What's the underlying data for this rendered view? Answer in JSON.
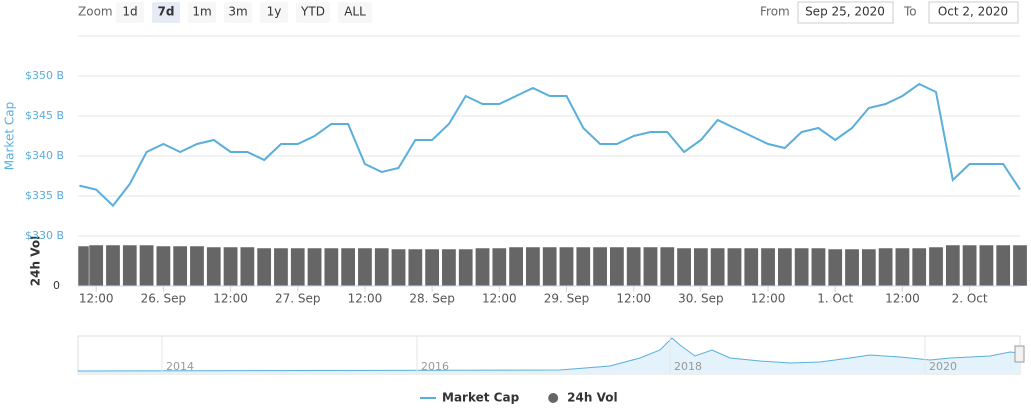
{
  "toolbar": {
    "zoom_label": "Zoom",
    "buttons": [
      "1d",
      "7d",
      "1m",
      "3m",
      "1y",
      "YTD",
      "ALL"
    ],
    "selected": "7d",
    "from_label": "From",
    "from": "Sep 25, 2020",
    "to_label": "To",
    "to": "Oct 2, 2020"
  },
  "navigator": {
    "labels": [
      "2014",
      "2016",
      "2018",
      "2020"
    ]
  },
  "chart_data": {
    "type": "line",
    "ylabel": "Market Cap",
    "y2label": "24h Vol",
    "x": [
      "2020-09-25T09:00",
      "2020-09-25T12:00",
      "2020-09-25T15:00",
      "2020-09-25T18:00",
      "2020-09-25T21:00",
      "2020-09-26T00:00",
      "2020-09-26T03:00",
      "2020-09-26T06:00",
      "2020-09-26T09:00",
      "2020-09-26T12:00",
      "2020-09-26T15:00",
      "2020-09-26T18:00",
      "2020-09-26T21:00",
      "2020-09-27T00:00",
      "2020-09-27T03:00",
      "2020-09-27T06:00",
      "2020-09-27T09:00",
      "2020-09-27T12:00",
      "2020-09-27T15:00",
      "2020-09-27T18:00",
      "2020-09-27T21:00",
      "2020-09-28T00:00",
      "2020-09-28T03:00",
      "2020-09-28T06:00",
      "2020-09-28T09:00",
      "2020-09-28T12:00",
      "2020-09-28T15:00",
      "2020-09-28T18:00",
      "2020-09-28T21:00",
      "2020-09-29T00:00",
      "2020-09-29T03:00",
      "2020-09-29T06:00",
      "2020-09-29T09:00",
      "2020-09-29T12:00",
      "2020-09-29T15:00",
      "2020-09-29T18:00",
      "2020-09-29T21:00",
      "2020-09-30T00:00",
      "2020-09-30T03:00",
      "2020-09-30T06:00",
      "2020-09-30T09:00",
      "2020-09-30T12:00",
      "2020-09-30T15:00",
      "2020-09-30T18:00",
      "2020-09-30T21:00",
      "2020-10-01T00:00",
      "2020-10-01T03:00",
      "2020-10-01T06:00",
      "2020-10-01T09:00",
      "2020-10-01T12:00",
      "2020-10-01T15:00",
      "2020-10-01T18:00",
      "2020-10-01T21:00",
      "2020-10-02T00:00",
      "2020-10-02T03:00",
      "2020-10-02T06:00",
      "2020-10-02T09:00"
    ],
    "series": [
      {
        "name": "Market Cap",
        "color": "#5aaedc",
        "values": [
          336.3,
          335.8,
          333.8,
          336.5,
          340.5,
          341.5,
          340.5,
          341.5,
          342,
          340.5,
          340.5,
          339.5,
          341.5,
          341.5,
          342.5,
          344,
          344,
          339,
          338,
          338.5,
          342,
          342,
          344,
          347.5,
          346.5,
          346.5,
          347.5,
          348.5,
          347.5,
          347.5,
          343.5,
          341.5,
          341.5,
          342.5,
          343,
          343,
          340.5,
          342,
          344.5,
          343.5,
          342.5,
          341.5,
          341,
          343,
          343.5,
          342,
          343.5,
          346,
          346.5,
          347.5,
          349,
          348,
          337,
          339,
          339,
          339,
          335.8
        ]
      },
      {
        "name": "24h Vol",
        "color": "#666666",
        "type": "bar",
        "axis": "y2",
        "values": [
          40,
          41,
          41,
          41,
          41,
          40,
          40,
          40,
          39,
          39,
          39,
          38,
          38,
          38,
          38,
          38,
          38,
          38,
          38,
          37,
          37,
          37,
          37,
          37,
          38,
          38,
          39,
          39,
          39,
          39,
          39,
          39,
          39,
          39,
          39,
          39,
          38,
          38,
          38,
          38,
          38,
          38,
          38,
          38,
          38,
          37,
          37,
          37,
          38,
          38,
          38,
          39,
          41,
          41,
          41,
          41,
          41
        ]
      }
    ],
    "xlim": [
      "2020-09-25T08:45",
      "2020-10-02T09:00"
    ],
    "xticks": [
      {
        "value": "2020-09-25T12:00",
        "label": "12:00"
      },
      {
        "value": "2020-09-26T00:00",
        "label": "26. Sep"
      },
      {
        "value": "2020-09-26T12:00",
        "label": "12:00"
      },
      {
        "value": "2020-09-27T00:00",
        "label": "27. Sep"
      },
      {
        "value": "2020-09-27T12:00",
        "label": "12:00"
      },
      {
        "value": "2020-09-28T00:00",
        "label": "28. Sep"
      },
      {
        "value": "2020-09-28T12:00",
        "label": "12:00"
      },
      {
        "value": "2020-09-29T00:00",
        "label": "29. Sep"
      },
      {
        "value": "2020-09-29T12:00",
        "label": "12:00"
      },
      {
        "value": "2020-09-30T00:00",
        "label": "30. Sep"
      },
      {
        "value": "2020-09-30T12:00",
        "label": "12:00"
      },
      {
        "value": "2020-10-01T00:00",
        "label": "1. Oct"
      },
      {
        "value": "2020-10-01T12:00",
        "label": "12:00"
      },
      {
        "value": "2020-10-02T00:00",
        "label": "2. Oct"
      }
    ],
    "ylim": [
      330,
      355
    ],
    "yticks": [
      {
        "value": 330,
        "label": "$330 B"
      },
      {
        "value": 335,
        "label": "$335 B"
      },
      {
        "value": 340,
        "label": "$340 B"
      },
      {
        "value": 345,
        "label": "$345 B"
      },
      {
        "value": 350,
        "label": "$350 B"
      }
    ],
    "y2lim": [
      0,
      50
    ],
    "y2ticks": [
      0
    ],
    "grid": true,
    "legend": "bottom"
  }
}
